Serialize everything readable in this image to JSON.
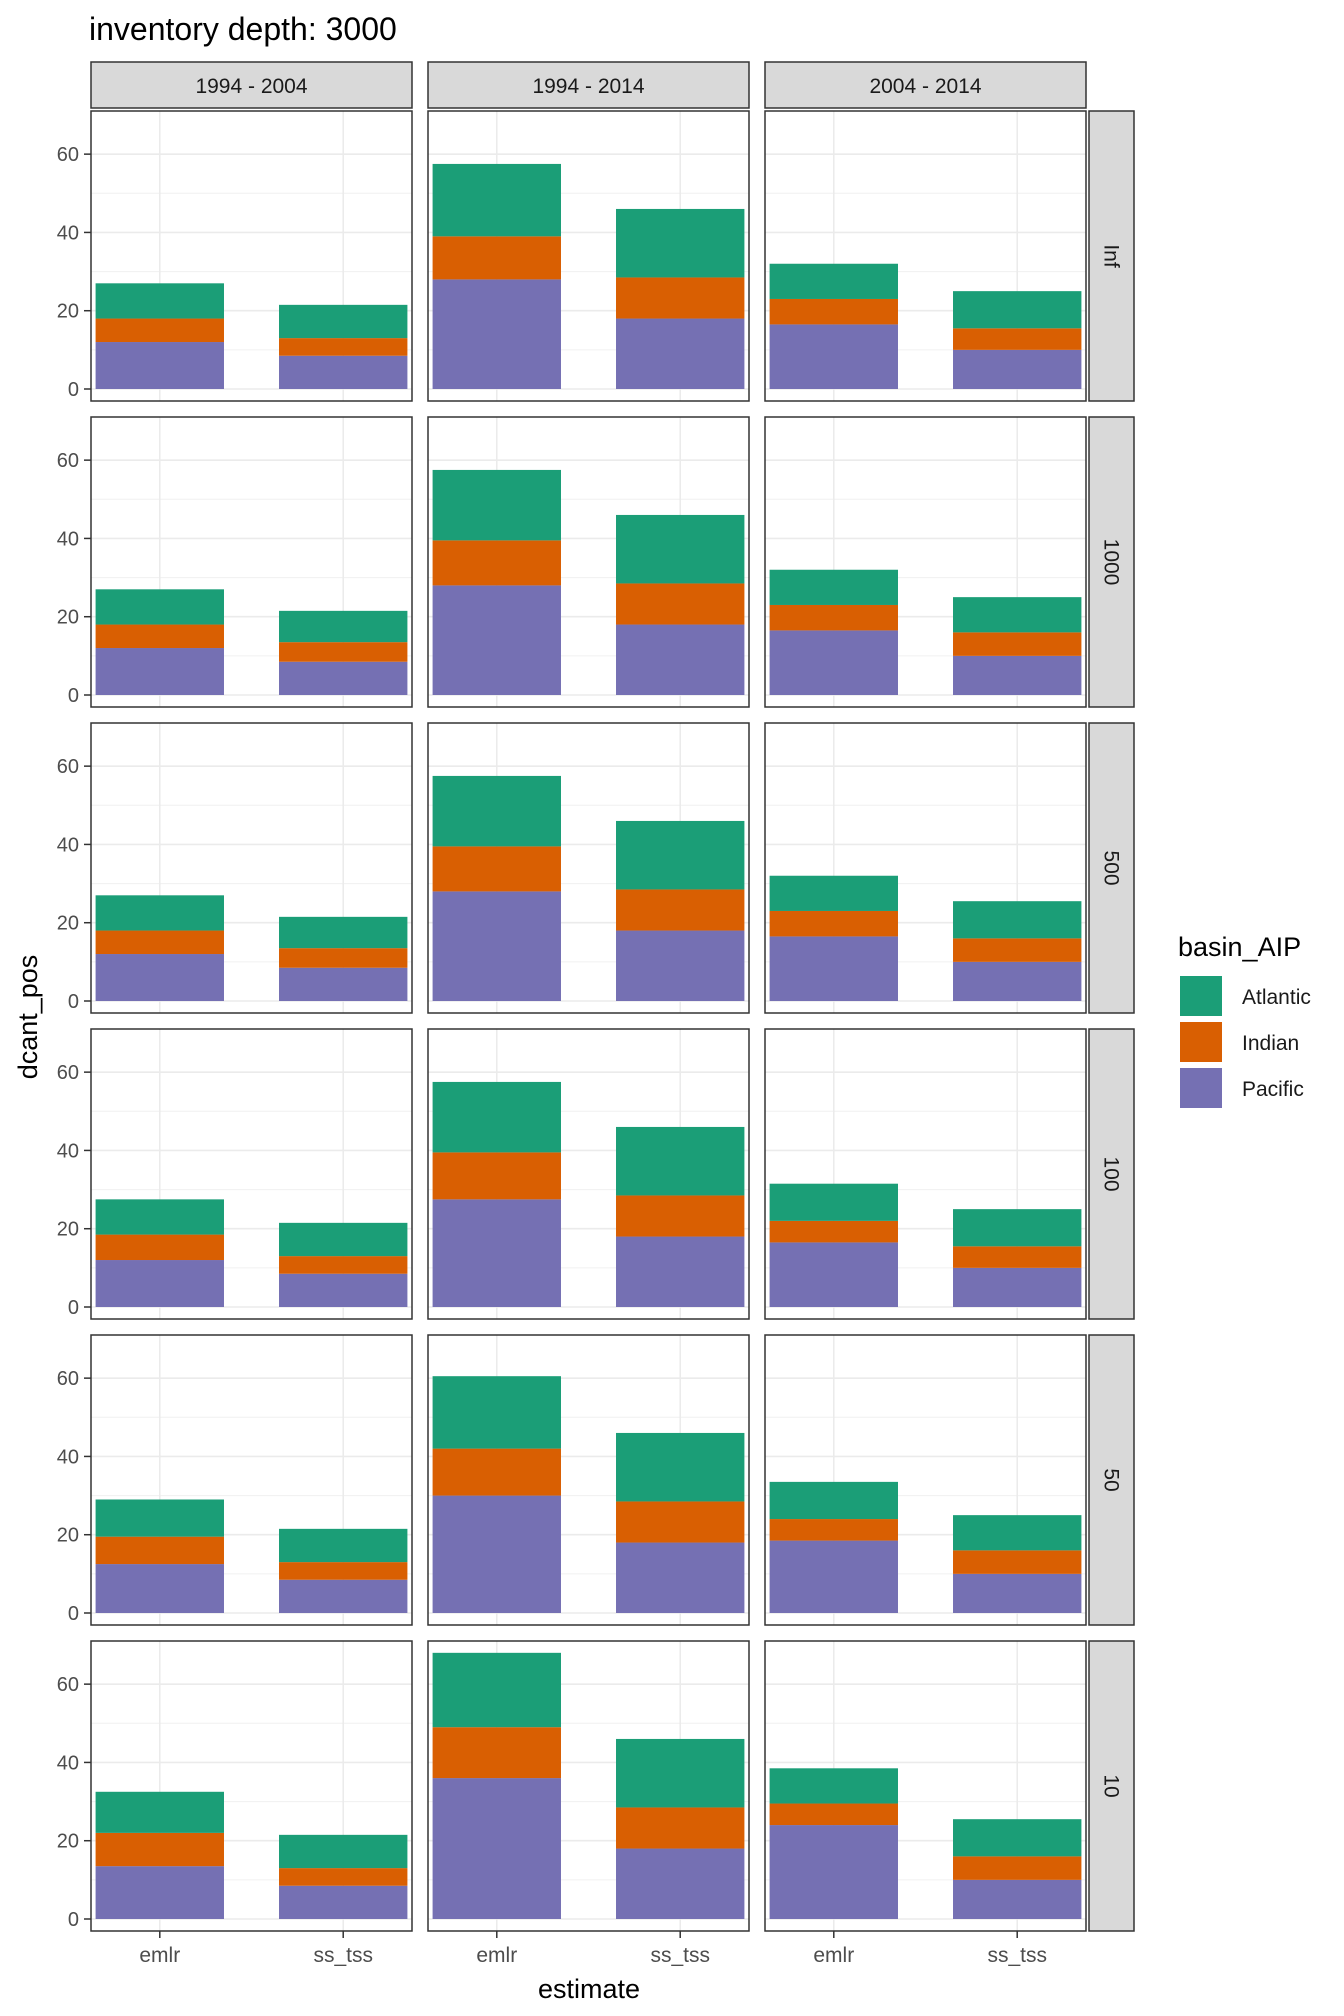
{
  "chart_data": {
    "type": "bar",
    "stacked": true,
    "title": "inventory depth: 3000",
    "xlabel": "estimate",
    "ylabel": "dcant_pos",
    "ylim": [
      0,
      70
    ],
    "yticks": [
      0,
      20,
      40,
      60
    ],
    "grid": true,
    "legend": {
      "title": "basin_AIP",
      "placement": "right",
      "entries": [
        "Atlantic",
        "Indian",
        "Pacific"
      ]
    },
    "series_colors": {
      "Atlantic": "#1b9e77",
      "Indian": "#d95f02",
      "Pacific": "#7570b3"
    },
    "categories": [
      "emlr",
      "ss_tss"
    ],
    "col_facets": [
      "1994 - 2004",
      "1994 - 2014",
      "2004 - 2014"
    ],
    "row_facets": [
      "Inf",
      "1000",
      "500",
      "100",
      "50",
      "10"
    ],
    "panels": [
      [
        {
          "emlr": {
            "Pacific": 12,
            "Indian": 6,
            "Atlantic": 9
          },
          "ss_tss": {
            "Pacific": 8.5,
            "Indian": 4.5,
            "Atlantic": 8.5
          }
        },
        {
          "emlr": {
            "Pacific": 28,
            "Indian": 11,
            "Atlantic": 18.5
          },
          "ss_tss": {
            "Pacific": 18,
            "Indian": 10.5,
            "Atlantic": 17.5
          }
        },
        {
          "emlr": {
            "Pacific": 16.5,
            "Indian": 6.5,
            "Atlantic": 9
          },
          "ss_tss": {
            "Pacific": 10,
            "Indian": 5.5,
            "Atlantic": 9.5
          }
        }
      ],
      [
        {
          "emlr": {
            "Pacific": 12,
            "Indian": 6,
            "Atlantic": 9
          },
          "ss_tss": {
            "Pacific": 8.5,
            "Indian": 5,
            "Atlantic": 8
          }
        },
        {
          "emlr": {
            "Pacific": 28,
            "Indian": 11.5,
            "Atlantic": 18
          },
          "ss_tss": {
            "Pacific": 18,
            "Indian": 10.5,
            "Atlantic": 17.5
          }
        },
        {
          "emlr": {
            "Pacific": 16.5,
            "Indian": 6.5,
            "Atlantic": 9
          },
          "ss_tss": {
            "Pacific": 10,
            "Indian": 6,
            "Atlantic": 9
          }
        }
      ],
      [
        {
          "emlr": {
            "Pacific": 12,
            "Indian": 6,
            "Atlantic": 9
          },
          "ss_tss": {
            "Pacific": 8.5,
            "Indian": 5,
            "Atlantic": 8
          }
        },
        {
          "emlr": {
            "Pacific": 28,
            "Indian": 11.5,
            "Atlantic": 18
          },
          "ss_tss": {
            "Pacific": 18,
            "Indian": 10.5,
            "Atlantic": 17.5
          }
        },
        {
          "emlr": {
            "Pacific": 16.5,
            "Indian": 6.5,
            "Atlantic": 9
          },
          "ss_tss": {
            "Pacific": 10,
            "Indian": 6,
            "Atlantic": 9.5
          }
        }
      ],
      [
        {
          "emlr": {
            "Pacific": 12,
            "Indian": 6.5,
            "Atlantic": 9
          },
          "ss_tss": {
            "Pacific": 8.5,
            "Indian": 4.5,
            "Atlantic": 8.5
          }
        },
        {
          "emlr": {
            "Pacific": 27.5,
            "Indian": 12,
            "Atlantic": 18
          },
          "ss_tss": {
            "Pacific": 18,
            "Indian": 10.5,
            "Atlantic": 17.5
          }
        },
        {
          "emlr": {
            "Pacific": 16.5,
            "Indian": 5.5,
            "Atlantic": 9.5
          },
          "ss_tss": {
            "Pacific": 10,
            "Indian": 5.5,
            "Atlantic": 9.5
          }
        }
      ],
      [
        {
          "emlr": {
            "Pacific": 12.5,
            "Indian": 7,
            "Atlantic": 9.5
          },
          "ss_tss": {
            "Pacific": 8.5,
            "Indian": 4.5,
            "Atlantic": 8.5
          }
        },
        {
          "emlr": {
            "Pacific": 30,
            "Indian": 12,
            "Atlantic": 18.5
          },
          "ss_tss": {
            "Pacific": 18,
            "Indian": 10.5,
            "Atlantic": 17.5
          }
        },
        {
          "emlr": {
            "Pacific": 18.5,
            "Indian": 5.5,
            "Atlantic": 9.5
          },
          "ss_tss": {
            "Pacific": 10,
            "Indian": 6,
            "Atlantic": 9
          }
        }
      ],
      [
        {
          "emlr": {
            "Pacific": 13.5,
            "Indian": 8.5,
            "Atlantic": 10.5
          },
          "ss_tss": {
            "Pacific": 8.5,
            "Indian": 4.5,
            "Atlantic": 8.5
          }
        },
        {
          "emlr": {
            "Pacific": 36,
            "Indian": 13,
            "Atlantic": 19
          },
          "ss_tss": {
            "Pacific": 18,
            "Indian": 10.5,
            "Atlantic": 17.5
          }
        },
        {
          "emlr": {
            "Pacific": 24,
            "Indian": 5.5,
            "Atlantic": 9
          },
          "ss_tss": {
            "Pacific": 10,
            "Indian": 6,
            "Atlantic": 9.5
          }
        }
      ]
    ]
  }
}
